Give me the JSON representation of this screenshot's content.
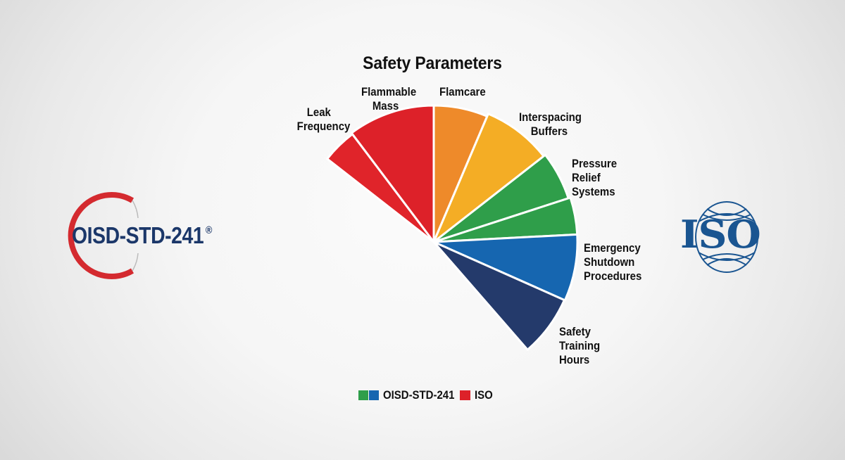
{
  "chart_data": {
    "type": "pie",
    "subtype": "partial-radial (fan) pie",
    "title": "Safety Parameters",
    "center": [
      616,
      344
    ],
    "slices": [
      {
        "label": "Leak Frequency",
        "start_deg": -52,
        "end_deg": -37,
        "radius": 192,
        "color": "#e0242a",
        "group": "ISO"
      },
      {
        "label": "Flammable Mass",
        "start_deg": -37,
        "end_deg": 0,
        "radius": 194,
        "color": "#dd2129",
        "group": "ISO"
      },
      {
        "label": "Flamcare",
        "start_deg": 0,
        "end_deg": 23,
        "radius": 194,
        "color": "#ee8a2a",
        "group": "ISO"
      },
      {
        "label": "Interspacing Buffers",
        "start_deg": 23,
        "end_deg": 52,
        "radius": 198,
        "color": "#f4ad25",
        "group": "ISO"
      },
      {
        "label": "Pressure Relief Systems",
        "start_deg": 52,
        "end_deg": 72,
        "radius": 201,
        "color": "#2f9e4a",
        "group": "OISD-STD-241"
      },
      {
        "label": "Pressure Relief Systems (2)",
        "start_deg": 72,
        "end_deg": 87,
        "radius": 204,
        "color": "#2f9e4a",
        "group": "OISD-STD-241"
      },
      {
        "label": "Emergency Shutdown Procedures",
        "start_deg": 87,
        "end_deg": 114,
        "radius": 204,
        "color": "#1666b0",
        "group": "OISD-STD-241"
      },
      {
        "label": "Safety Training Hours",
        "start_deg": 114,
        "end_deg": 139,
        "radius": 203,
        "color": "#243a6b",
        "group": "OISD-STD-241"
      }
    ],
    "approx_share_deg": {
      "Leak Frequency": 15,
      "Flammable Mass": 37,
      "Flamcare": 23,
      "Interspacing Buffers": 29,
      "Pressure Relief Systems": 35,
      "Emergency Shutdown Procedures": 27,
      "Safety Training Hours": 25
    },
    "legend": [
      {
        "label": "OISD-STD-241",
        "colors": [
          "#2f9e4a",
          "#1666b0"
        ]
      },
      {
        "label": "ISO",
        "colors": [
          "#dd2129"
        ]
      }
    ],
    "legend_position": "bottom",
    "grid": false
  },
  "title": "Safety Parameters",
  "labels": {
    "leak": [
      "Leak",
      "Frequency"
    ],
    "flammable": [
      "Flammable",
      "Mass"
    ],
    "flamcare": [
      "Flamcare"
    ],
    "interspacing": [
      "Interspacing",
      "Buffers"
    ],
    "pressure": [
      "Pressure",
      "Relief",
      "Systems"
    ],
    "emergency": [
      "Emergency",
      "Shutdown",
      "Procedures"
    ],
    "training": [
      "Safety",
      "Training",
      "Hours"
    ]
  },
  "legend": {
    "oisd": "OISD-STD-241",
    "iso": "ISO"
  },
  "logos": {
    "left": {
      "text": "OISD-STD-241",
      "mark": "®",
      "ring_color": "#d42a2f",
      "text_color": "#1b3769"
    },
    "right": {
      "text": "ISO",
      "color": "#1a5591"
    }
  }
}
